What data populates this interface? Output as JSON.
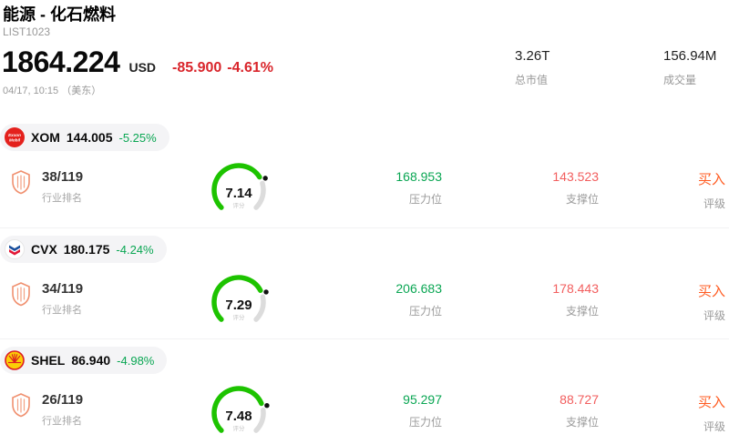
{
  "colors": {
    "positive_green": "#0aa653",
    "header_change_red": "#d9252b",
    "support_red": "#f25e5e",
    "buy_orange": "#ff5b21",
    "gauge_green": "#1dc300",
    "muted_gray": "#999999"
  },
  "header": {
    "title": "能源 - 化石燃料",
    "list_id": "LIST1023",
    "price": "1864.224",
    "currency": "USD",
    "change": "-85.900",
    "change_pct": "-4.61%",
    "datetime": "04/17, 10:15 （美东）",
    "market_cap": {
      "value": "3.26T",
      "label": "总市值"
    },
    "volume": {
      "value": "156.94M",
      "label": "成交量"
    }
  },
  "labels": {
    "industry_rank": "行业排名",
    "score": "评分",
    "resistance": "压力位",
    "support": "支撑位",
    "rating": "评级"
  },
  "stocks": [
    {
      "ticker": "XOM",
      "price": "144.005",
      "change_pct": "-5.25%",
      "rank": "38/119",
      "score": "7.14",
      "score_value": 7.14,
      "resistance": "168.953",
      "support": "143.523",
      "rating": "买入"
    },
    {
      "ticker": "CVX",
      "price": "180.175",
      "change_pct": "-4.24%",
      "rank": "34/119",
      "score": "7.29",
      "score_value": 7.29,
      "resistance": "206.683",
      "support": "178.443",
      "rating": "买入"
    },
    {
      "ticker": "SHEL",
      "price": "86.940",
      "change_pct": "-4.98%",
      "rank": "26/119",
      "score": "7.48",
      "score_value": 7.48,
      "resistance": "95.297",
      "support": "88.727",
      "rating": "买入"
    }
  ]
}
